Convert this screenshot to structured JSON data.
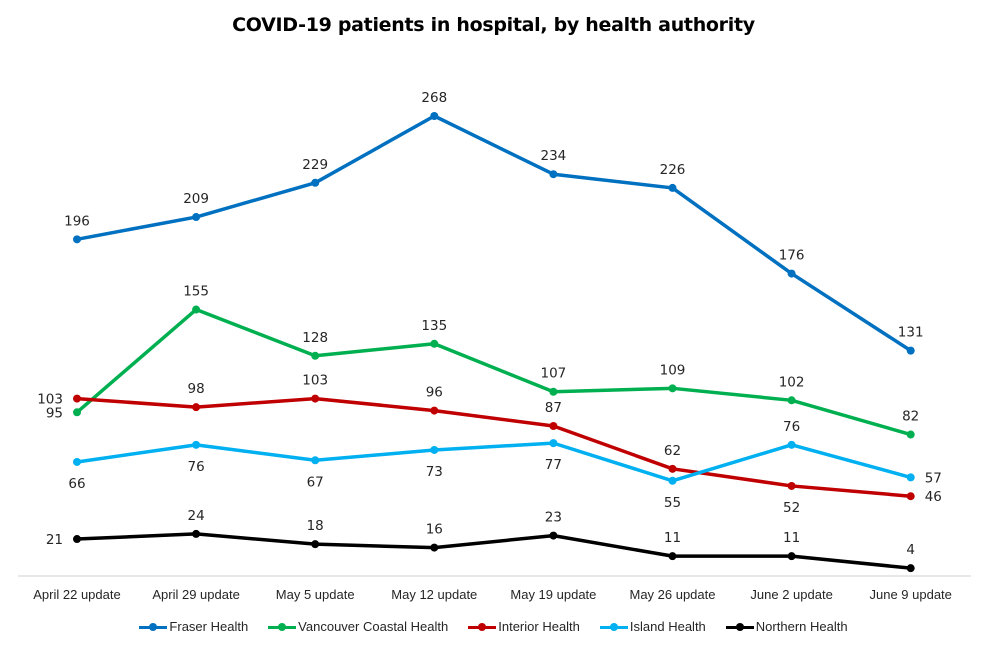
{
  "chart_data": {
    "type": "line",
    "title": "COVID-19 patients in hospital, by health authority",
    "xlabel": "",
    "ylabel": "",
    "ylim": [
      0,
      268
    ],
    "grid": false,
    "legend_position": "bottom",
    "categories": [
      "April 22 update",
      "April 29 update",
      "May 5 update",
      "May 12 update",
      "May 19 update",
      "May 26 update",
      "June 2 update",
      "June 9 update"
    ],
    "series": [
      {
        "name": "Fraser Health",
        "color": "#0070C0",
        "values": [
          196,
          209,
          229,
          268,
          234,
          226,
          176,
          131
        ],
        "label_pos": [
          "above",
          "above",
          "above",
          "above",
          "above",
          "above",
          "above",
          "above"
        ]
      },
      {
        "name": "Vancouver Coastal Health",
        "color": "#00B050",
        "values": [
          95,
          155,
          128,
          135,
          107,
          109,
          102,
          82
        ],
        "label_pos": [
          "left",
          "above",
          "above",
          "above",
          "above",
          "above",
          "above",
          "above"
        ]
      },
      {
        "name": "Interior Health",
        "color": "#C00000",
        "values": [
          103,
          98,
          103,
          96,
          87,
          62,
          52,
          46
        ],
        "label_pos": [
          "left",
          "above",
          "above",
          "above",
          "above",
          "above",
          "below",
          "right"
        ]
      },
      {
        "name": "Island Health",
        "color": "#00B0F0",
        "values": [
          66,
          76,
          67,
          73,
          77,
          55,
          76,
          57
        ],
        "label_pos": [
          "below",
          "below",
          "below",
          "below",
          "below",
          "below",
          "above",
          "right"
        ]
      },
      {
        "name": "Northern Health",
        "color": "#000000",
        "values": [
          21,
          24,
          18,
          16,
          23,
          11,
          11,
          4
        ],
        "label_pos": [
          "left",
          "above",
          "above",
          "above",
          "above",
          "above",
          "above",
          "above"
        ]
      }
    ]
  }
}
